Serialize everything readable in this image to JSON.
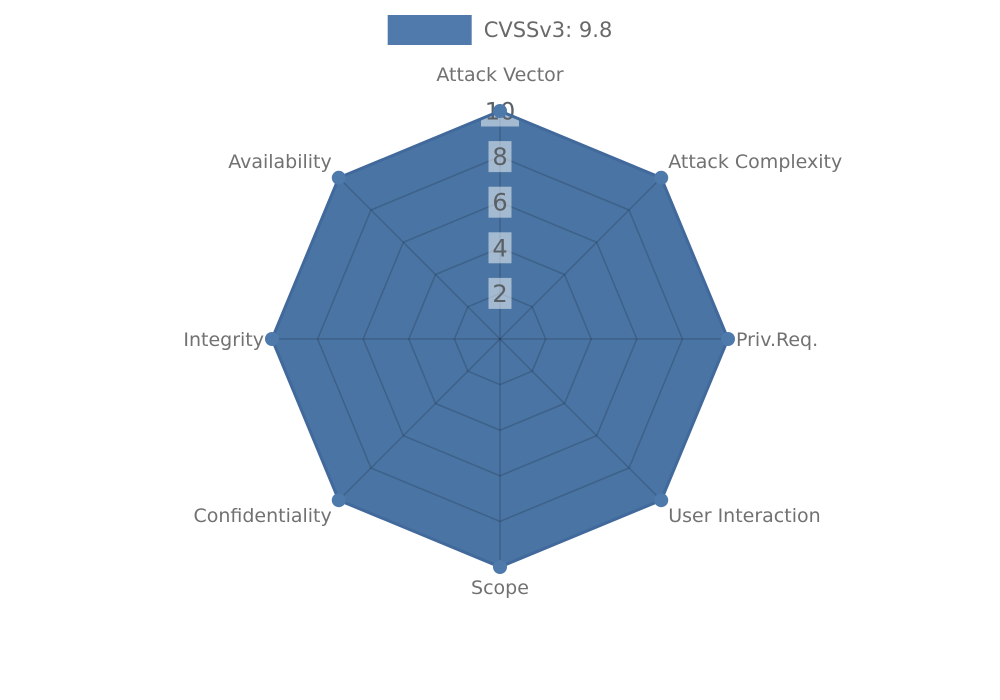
{
  "legend": {
    "label": "CVSSv3: 9.8"
  },
  "chart_data": {
    "type": "radar",
    "title": "",
    "axes": [
      "Attack Vector",
      "Attack Complexity",
      "Priv.Req.",
      "User Interaction",
      "Scope",
      "Confidentiality",
      "Integrity",
      "Availability"
    ],
    "series": [
      {
        "name": "CVSSv3: 9.8",
        "values": [
          10,
          10,
          10,
          10,
          10,
          10,
          10,
          10
        ]
      }
    ],
    "range": [
      0,
      10
    ],
    "ticks": [
      2,
      4,
      6,
      8,
      10
    ],
    "grid": true,
    "grid_shape": "polygon",
    "legend_position": "top-center",
    "colors": {
      "series_fill": "#4974a3",
      "series_edge": "#41699b",
      "marker": "#4d79ab",
      "grid_line": "rgba(0,0,0,0.16)",
      "tick_text": "#596066",
      "tick_box": "rgba(255,255,255,0.5)",
      "axis_label": "#717171",
      "legend_text": "#696969",
      "legend_swatch": "#4f7aab",
      "background": "#ffffff"
    }
  }
}
